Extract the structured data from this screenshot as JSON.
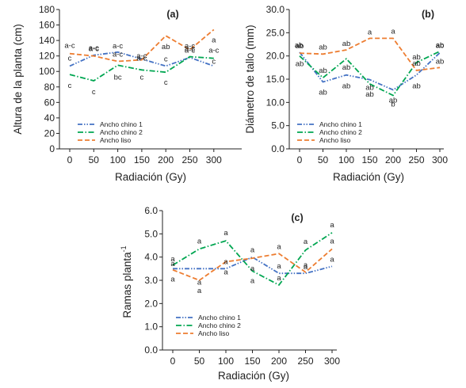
{
  "colors": {
    "ancho_chino_1": "#4472C4",
    "ancho_chino_2": "#00A651",
    "ancho_liso": "#ED7D31",
    "axis": "#222222",
    "letters": "#333333"
  },
  "chart_data": [
    {
      "type": "line",
      "panel_label": "(a)",
      "ylabel": "Altura de la planta (cm)",
      "xlabel": "Radiación (Gy)",
      "x": [
        0,
        50,
        100,
        150,
        200,
        250,
        300
      ],
      "xticks": [
        "0",
        "50",
        "100",
        "150",
        "200",
        "250",
        "300"
      ],
      "ylim": [
        0,
        180
      ],
      "yticks": [
        "0",
        "20",
        "40",
        "60",
        "80",
        "100",
        "120",
        "140",
        "160",
        "180"
      ],
      "legend_position": "bottom-left",
      "series": [
        {
          "name": "Ancho chino 1",
          "style": "dash-dot-dot",
          "values": [
            107,
            121,
            125,
            116,
            107,
            118,
            107
          ],
          "letters": [
            "c",
            "a-c",
            "a-c",
            "a-c",
            "c",
            "a-c",
            "c"
          ]
        },
        {
          "name": "Ancho chino 2",
          "style": "dash-dot",
          "values": [
            96,
            88,
            108,
            102,
            99,
            119,
            117
          ],
          "letters": [
            "c",
            "c",
            "bc",
            "c",
            "c",
            "a-c",
            "a-c"
          ]
        },
        {
          "name": "Ancho liso",
          "style": "dashed",
          "values": [
            123,
            120,
            113,
            115,
            146,
            128,
            154
          ],
          "letters": [
            "a-c",
            "a-c",
            "a-c",
            "a-c",
            "ab",
            "a-c",
            "a"
          ]
        }
      ]
    },
    {
      "type": "line",
      "panel_label": "(b)",
      "ylabel": "Diámetro de tallo (mm)",
      "xlabel": "Radiación (Gy)",
      "x": [
        0,
        50,
        100,
        150,
        200,
        250,
        300
      ],
      "xticks": [
        "0",
        "50",
        "100",
        "150",
        "200",
        "250",
        "300"
      ],
      "ylim": [
        0,
        30
      ],
      "yticks": [
        "0.0",
        "5.0",
        "10.0",
        "15.0",
        "20.0",
        "25.0",
        "30.0"
      ],
      "legend_position": "bottom-left",
      "series": [
        {
          "name": "Ancho chino 1",
          "style": "dash-dot-dot",
          "values": [
            20.8,
            14.4,
            15.9,
            14.9,
            12.7,
            15.9,
            20.7
          ],
          "letters": [
            "ab",
            "ab",
            "ab",
            "ab",
            "ab",
            "ab",
            "ab"
          ]
        },
        {
          "name": "Ancho chino 2",
          "style": "dash-dot",
          "values": [
            20.0,
            15.3,
            19.4,
            14.0,
            11.5,
            18.6,
            21.0
          ],
          "letters": [
            "ab",
            "ab",
            "ab",
            "ab",
            "b",
            "ab",
            "ab"
          ]
        },
        {
          "name": "Ancho liso",
          "style": "dashed",
          "values": [
            20.6,
            20.4,
            21.3,
            23.8,
            23.8,
            16.9,
            17.5
          ],
          "letters": [
            "ab",
            "ab",
            "ab",
            "a",
            "a",
            "ab",
            "ab"
          ]
        }
      ]
    },
    {
      "type": "line",
      "panel_label": "(c)",
      "ylabel_main": "Ramas planta",
      "ylabel_sup": "-1",
      "xlabel": "Radiación (Gy)",
      "x": [
        0,
        50,
        100,
        150,
        200,
        250,
        300
      ],
      "xticks": [
        "0",
        "50",
        "100",
        "150",
        "200",
        "250",
        "300"
      ],
      "ylim": [
        0,
        6
      ],
      "yticks": [
        "0.0",
        "1.0",
        "2.0",
        "3.0",
        "4.0",
        "5.0",
        "6.0"
      ],
      "legend_position": "bottom-left",
      "series": [
        {
          "name": "Ancho chino 1",
          "style": "dash-dot-dot",
          "values": [
            3.5,
            3.5,
            3.5,
            4.0,
            3.3,
            3.3,
            3.6
          ],
          "letters": [
            "a",
            "a",
            "a",
            "a",
            "a",
            "a",
            "a"
          ]
        },
        {
          "name": "Ancho chino 2",
          "style": "dash-dot",
          "values": [
            3.65,
            4.35,
            4.7,
            3.4,
            2.8,
            4.3,
            5.05
          ],
          "letters": [
            "a",
            "a",
            "a",
            "a",
            "a",
            "a",
            "a"
          ]
        },
        {
          "name": "Ancho liso",
          "style": "dashed",
          "values": [
            3.45,
            3.0,
            3.8,
            3.95,
            4.15,
            3.35,
            4.35
          ],
          "letters": [
            "a",
            "a",
            "a",
            "a",
            "a",
            "a",
            "a"
          ]
        }
      ]
    }
  ]
}
